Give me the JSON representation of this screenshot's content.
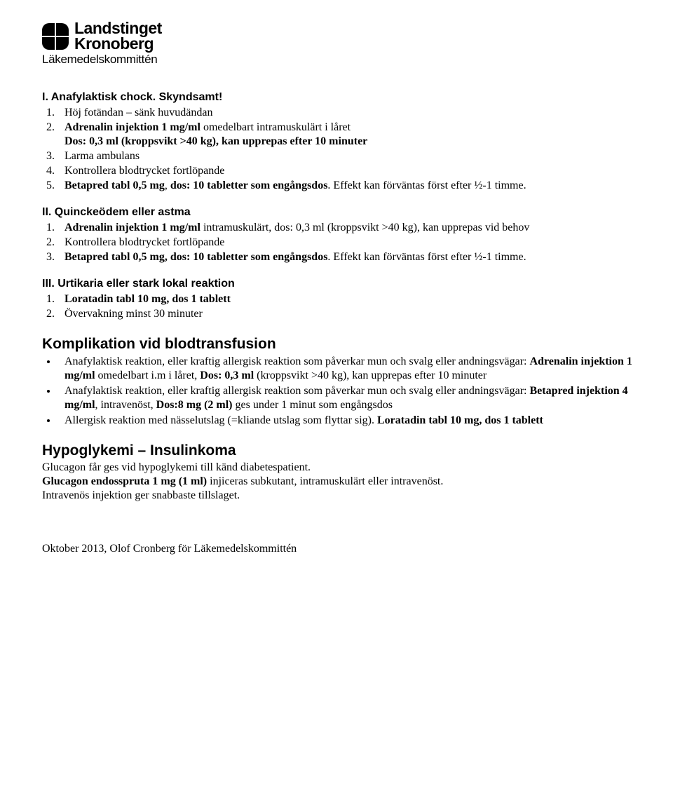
{
  "logo": {
    "line1": "Landstinget",
    "line2": "Kronoberg",
    "sub": "Läkemedelskommittén"
  },
  "s1": {
    "heading": "I. Anafylaktisk chock. Skyndsamt!",
    "i1": "Höj fotändan – sänk huvudändan",
    "i2a": "Adrenalin injektion 1 mg/ml",
    "i2b": " omedelbart intramuskulärt i låret",
    "i2c": "Dos: 0,3 ml (kroppsvikt >40 kg), kan upprepas efter 10 minuter",
    "i3": "Larma ambulans",
    "i4": "Kontrollera blodtrycket fortlöpande",
    "i5a": "Betapred tabl 0,5 mg",
    "i5b": ", ",
    "i5c": "dos: 10 tabletter som engångsdos",
    "i5d": ". Effekt kan förväntas först efter ½-1 timme."
  },
  "s2": {
    "heading": "II. Quinckeödem eller astma",
    "i1a": "Adrenalin injektion 1 mg/ml",
    "i1b": " intramuskulärt, dos: 0,3 ml (kroppsvikt >40 kg), kan upprepas vid behov",
    "i2": "Kontrollera blodtrycket fortlöpande",
    "i3a": "Betapred tabl 0,5 mg, dos: 10 tabletter som engångsdos",
    "i3b": ". Effekt kan förväntas först efter ½-1 timme."
  },
  "s3": {
    "heading": "III. Urtikaria eller stark lokal reaktion",
    "i1": "Loratadin tabl 10 mg, dos 1 tablett",
    "i2": "Övervakning minst 30 minuter"
  },
  "s4": {
    "heading": "Komplikation vid blodtransfusion",
    "b1a": "Anafylaktisk reaktion, eller kraftig allergisk reaktion som påverkar mun och svalg eller andningsvägar: ",
    "b1b": "Adrenalin injektion 1 mg/ml",
    "b1c": " omedelbart i.m i låret, ",
    "b1d": "Dos: 0,3 ml",
    "b1e": " (kroppsvikt >40 kg), kan upprepas efter 10 minuter",
    "b2a": "Anafylaktisk reaktion, eller kraftig allergisk reaktion som påverkar mun och svalg eller andningsvägar: ",
    "b2b": "Betapred injektion 4 mg/ml",
    "b2c": ", intravenöst, ",
    "b2d": "Dos:8 mg (2 ml)",
    "b2e": " ges under 1 minut som engångsdos",
    "b3a": "Allergisk reaktion med nässelutslag (=kliande utslag som flyttar sig). ",
    "b3b": "Loratadin tabl 10 mg, dos 1 tablett"
  },
  "s5": {
    "heading": "Hypoglykemi – Insulinkoma",
    "l1": "Glucagon får ges vid hypoglykemi till känd diabetespatient.",
    "l2a": "Glucagon endosspruta 1 mg (1 ml)",
    "l2b": " injiceras subkutant, intramuskulärt eller intravenöst.",
    "l3": "Intravenös injektion ger snabbaste tillslaget."
  },
  "footer": "Oktober 2013, Olof Cronberg för Läkemedelskommittén"
}
